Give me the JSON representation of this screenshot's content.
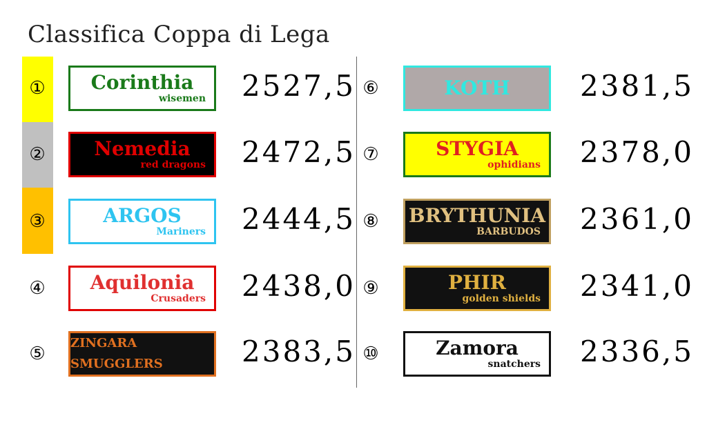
{
  "title": "Classifica Coppa di Lega",
  "colors": {
    "first": "#ffff00",
    "second": "#c0c0c0",
    "third": "#ffc000"
  },
  "teams": [
    {
      "rank": "①",
      "name": "Corinthia",
      "sub": "wisemen",
      "score": "2527,5",
      "fg": "#1a7a1a",
      "bg": "#ffffff",
      "border": "#1a7a1a"
    },
    {
      "rank": "②",
      "name": "Nemedia",
      "sub": "red dragons",
      "score": "2472,5",
      "fg": "#e00000",
      "bg": "#000000",
      "border": "#e00000"
    },
    {
      "rank": "③",
      "name": "ARGOS",
      "sub": "Mariners",
      "score": "2444,5",
      "fg": "#2ec4f0",
      "bg": "#ffffff",
      "border": "#2ec4f0"
    },
    {
      "rank": "④",
      "name": "Aquilonia",
      "sub": "Crusaders",
      "score": "2438,0",
      "fg": "#e03030",
      "bg": "#ffffff",
      "border": "#e00000"
    },
    {
      "rank": "⑤",
      "name": "ZINGARA SMUGGLERS",
      "sub": "",
      "score": "2383,5",
      "fg": "#e07020",
      "bg": "#111111",
      "border": "#e07020"
    },
    {
      "rank": "⑥",
      "name": "KOTH",
      "sub": "",
      "score": "2381,5",
      "fg": "#30e8e0",
      "bg": "#b0a8a8",
      "border": "#30e8e0"
    },
    {
      "rank": "⑦",
      "name": "STYGIA",
      "sub": "ophidians",
      "score": "2378,0",
      "fg": "#e02020",
      "bg": "#ffff00",
      "border": "#1a7a1a"
    },
    {
      "rank": "⑧",
      "name": "BRYTHUNIA",
      "sub": "BARBUDOS",
      "score": "2361,0",
      "fg": "#e0c080",
      "bg": "#111111",
      "border": "#c0a060"
    },
    {
      "rank": "⑨",
      "name": "PHIR",
      "sub": "golden shields",
      "score": "2341,0",
      "fg": "#e0b040",
      "bg": "#111111",
      "border": "#e0b040"
    },
    {
      "rank": "⑩",
      "name": "Zamora",
      "sub": "snatchers",
      "score": "2336,5",
      "fg": "#111111",
      "bg": "#ffffff",
      "border": "#111111"
    }
  ]
}
